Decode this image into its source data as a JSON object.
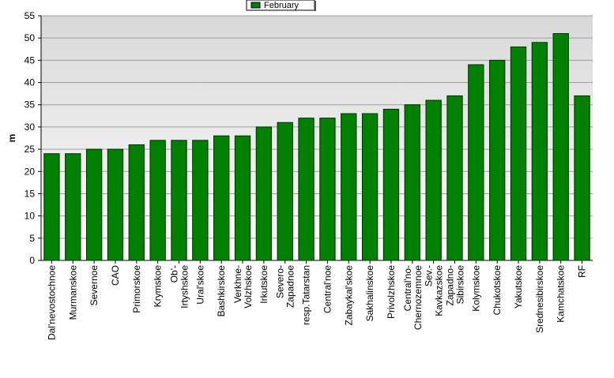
{
  "chart_data": {
    "type": "bar",
    "legend": "February",
    "y_label": "m",
    "categories": [
      "Dal'nevostochnoe",
      "Murmanskoe",
      "Severnoe",
      "CAO",
      "Primorskoe",
      "Krymskoe",
      "Ob'-Irtyshskoe",
      "Ural'skoe",
      "Bashkirskoe",
      "Verkhne-Volzhskoe",
      "Irkutskoe",
      "Severo-Zapadnoe",
      "resp.Tatarstan",
      "Central'noe",
      "Zabaykal'skoe",
      "Sakhalinskoe",
      "Privolzhskoe",
      "Central'no-Chernozemnoe",
      "Sev.-Kavkazskoe",
      "Zapadno-Sibirskoe",
      "Kolymskoe",
      "Chukotskoe",
      "Yakutskoe",
      "Srednesibirskoe",
      "Kamchatskoe",
      "RF"
    ],
    "values": [
      24,
      24,
      25,
      25,
      26,
      27,
      27,
      27,
      28,
      28,
      30,
      31,
      32,
      32,
      33,
      33,
      34,
      35,
      36,
      37,
      44,
      45,
      48,
      49,
      51,
      37
    ],
    "color": "#008000",
    "ylim": [
      0,
      55
    ],
    "yticks": [
      0,
      5,
      10,
      15,
      20,
      25,
      30,
      35,
      40,
      45,
      50,
      55
    ],
    "grid": true
  }
}
